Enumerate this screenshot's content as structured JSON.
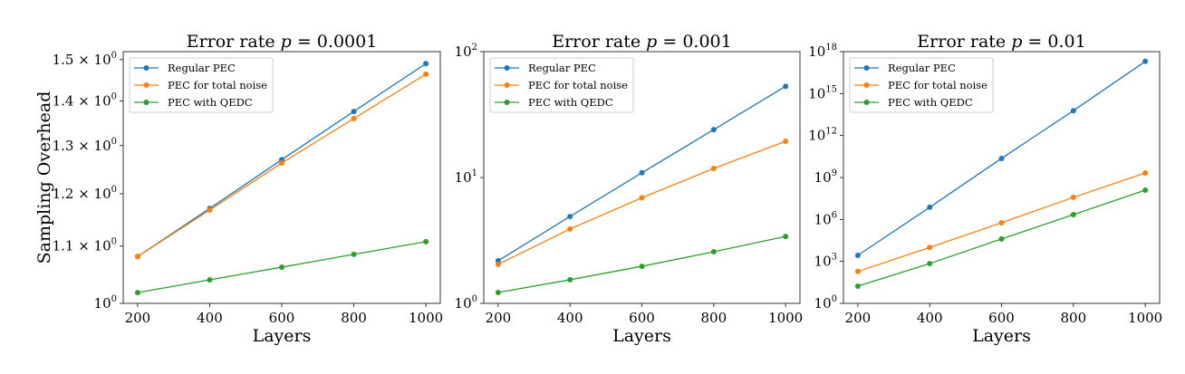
{
  "chart_data": [
    {
      "type": "line",
      "title": "Error rate p = 0.0001",
      "title_prefix": "Error rate ",
      "title_var": "p",
      "title_suffix": " = 0.0001",
      "xlabel": "Layers",
      "ylabel": "Sampling Overhead",
      "yscale": "log",
      "xlim": [
        160,
        1040
      ],
      "ylim": [
        1.0,
        1.52
      ],
      "x": [
        200,
        400,
        600,
        800,
        1000
      ],
      "xticks": [
        "200",
        "400",
        "600",
        "800",
        "1000"
      ],
      "yticks": [
        {
          "value": 1.0,
          "base": "10",
          "exp": "0"
        },
        {
          "value": 1.1,
          "base": "1.1 × 10",
          "exp": "0"
        },
        {
          "value": 1.2,
          "base": "1.2 × 10",
          "exp": "0"
        },
        {
          "value": 1.3,
          "base": "1.3 × 10",
          "exp": "0"
        },
        {
          "value": 1.4,
          "base": "1.4 × 10",
          "exp": "0"
        },
        {
          "value": 1.5,
          "base": "1.5 × 10",
          "exp": "0"
        }
      ],
      "legend_position": "upper-left",
      "series": [
        {
          "name": "Regular PEC",
          "color": "#1f77b4",
          "values": [
            1.081,
            1.171,
            1.27,
            1.376,
            1.49
          ]
        },
        {
          "name": "PEC for total noise",
          "color": "#ff7f0e",
          "values": [
            1.081,
            1.168,
            1.263,
            1.36,
            1.464
          ]
        },
        {
          "name": "PEC with QEDC",
          "color": "#2ca02c",
          "values": [
            1.018,
            1.04,
            1.062,
            1.085,
            1.108
          ]
        }
      ]
    },
    {
      "type": "line",
      "title": "Error rate p = 0.001",
      "title_prefix": "Error rate ",
      "title_var": "p",
      "title_suffix": " = 0.001",
      "xlabel": "Layers",
      "ylabel": "",
      "yscale": "log",
      "xlim": [
        160,
        1040
      ],
      "ylim": [
        1,
        100
      ],
      "x": [
        200,
        400,
        600,
        800,
        1000
      ],
      "xticks": [
        "200",
        "400",
        "600",
        "800",
        "1000"
      ],
      "yticks": [
        {
          "value": 1,
          "base": "10",
          "exp": "0"
        },
        {
          "value": 10,
          "base": "10",
          "exp": "1"
        },
        {
          "value": 100,
          "base": "10",
          "exp": "2"
        }
      ],
      "legend_position": "upper-left",
      "series": [
        {
          "name": "Regular PEC",
          "color": "#1f77b4",
          "values": [
            2.18,
            4.9,
            10.9,
            24,
            53
          ]
        },
        {
          "name": "PEC for total noise",
          "color": "#ff7f0e",
          "values": [
            2.04,
            3.9,
            6.9,
            11.8,
            19.4
          ]
        },
        {
          "name": "PEC with QEDC",
          "color": "#2ca02c",
          "values": [
            1.22,
            1.54,
            1.97,
            2.57,
            3.4
          ]
        }
      ]
    },
    {
      "type": "line",
      "title": "Error rate p = 0.01",
      "title_prefix": "Error rate ",
      "title_var": "p",
      "title_suffix": " = 0.01",
      "xlabel": "Layers",
      "ylabel": "",
      "yscale": "log",
      "xlim": [
        160,
        1040
      ],
      "ylim": [
        1,
        1e+18
      ],
      "x": [
        200,
        400,
        600,
        800,
        1000
      ],
      "xticks": [
        "200",
        "400",
        "600",
        "800",
        "1000"
      ],
      "yticks": [
        {
          "value": 1,
          "base": "10",
          "exp": "0"
        },
        {
          "value": 1000.0,
          "base": "10",
          "exp": "3"
        },
        {
          "value": 1000000.0,
          "base": "10",
          "exp": "6"
        },
        {
          "value": 1000000000.0,
          "base": "10",
          "exp": "9"
        },
        {
          "value": 1000000000000.0,
          "base": "10",
          "exp": "12"
        },
        {
          "value": 1000000000000000.0,
          "base": "10",
          "exp": "15"
        },
        {
          "value": 1e+18,
          "base": "10",
          "exp": "18"
        }
      ],
      "legend_position": "upper-left",
      "series": [
        {
          "name": "Regular PEC",
          "color": "#1f77b4",
          "values": [
            2700,
            7400000.0,
            23000000000.0,
            60000000000000.0,
            2e+17
          ]
        },
        {
          "name": "PEC for total noise",
          "color": "#ff7f0e",
          "values": [
            190,
            10000.0,
            580000.0,
            38000000.0,
            2100000000.0
          ]
        },
        {
          "name": "PEC with QEDC",
          "color": "#2ca02c",
          "values": [
            17,
            700,
            40000.0,
            2200000.0,
            125000000.0
          ]
        }
      ]
    }
  ]
}
